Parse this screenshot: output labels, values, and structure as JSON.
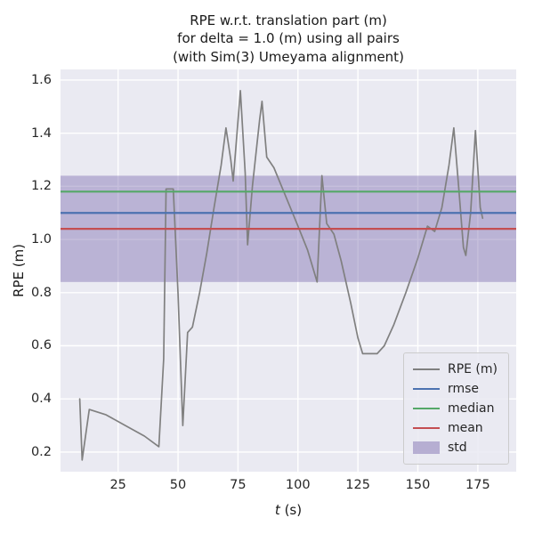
{
  "title": {
    "line1": "RPE w.r.t. translation part (m)",
    "line2": "for delta = 1.0 (m) using all pairs",
    "line3": "(with Sim(3) Umeyama alignment)"
  },
  "axes": {
    "xlabel_var": "t",
    "xlabel_unit": " (s)",
    "ylabel": "RPE (m)"
  },
  "legend": {
    "items": [
      {
        "label": "RPE (m)",
        "type": "line",
        "color": "#808080"
      },
      {
        "label": "rmse",
        "type": "line",
        "color": "#4c72b0"
      },
      {
        "label": "median",
        "type": "line",
        "color": "#55a868"
      },
      {
        "label": "mean",
        "type": "line",
        "color": "#c44e52"
      },
      {
        "label": "std",
        "type": "patch",
        "color": "#8172b2"
      }
    ]
  },
  "chart_data": {
    "type": "line",
    "title": "RPE w.r.t. translation part (m) for delta = 1.0 (m) using all pairs (with Sim(3) Umeyama alignment)",
    "xlabel": "t (s)",
    "ylabel": "RPE (m)",
    "xlim": [
      1,
      191
    ],
    "ylim": [
      0.126,
      1.64
    ],
    "xticks": [
      25,
      50,
      75,
      100,
      125,
      150,
      175
    ],
    "yticks": [
      0.2,
      0.4,
      0.6,
      0.8,
      1.0,
      1.2,
      1.4,
      1.6
    ],
    "grid": true,
    "legend_position": "lower right",
    "background": "#eaeaf2",
    "grid_color": "#ffffff",
    "series": [
      {
        "name": "RPE (m)",
        "color": "#808080",
        "x": [
          9,
          10,
          13,
          20,
          28,
          36,
          42,
          44,
          45,
          48,
          50,
          52,
          54,
          56,
          59,
          62,
          65,
          68,
          70,
          72,
          73,
          76,
          78,
          79,
          81,
          84,
          85,
          87,
          90,
          95,
          100,
          104,
          108,
          110,
          112,
          115,
          118,
          122,
          125,
          127,
          133,
          136,
          140,
          145,
          150,
          154,
          157,
          160,
          163,
          165,
          167,
          169,
          170,
          172,
          174,
          176,
          177
        ],
        "y": [
          0.4,
          0.17,
          0.36,
          0.34,
          0.3,
          0.26,
          0.22,
          0.55,
          1.19,
          1.19,
          0.8,
          0.3,
          0.65,
          0.67,
          0.8,
          0.95,
          1.12,
          1.28,
          1.42,
          1.3,
          1.22,
          1.56,
          1.25,
          0.98,
          1.2,
          1.45,
          1.52,
          1.31,
          1.27,
          1.16,
          1.05,
          0.96,
          0.84,
          1.24,
          1.06,
          1.02,
          0.92,
          0.76,
          0.63,
          0.57,
          0.57,
          0.6,
          0.68,
          0.8,
          0.93,
          1.05,
          1.03,
          1.12,
          1.28,
          1.42,
          1.2,
          0.97,
          0.94,
          1.1,
          1.41,
          1.12,
          1.08
        ]
      }
    ],
    "stat_lines": [
      {
        "name": "rmse",
        "value": 1.1,
        "color": "#4c72b0"
      },
      {
        "name": "median",
        "value": 1.18,
        "color": "#55a868"
      },
      {
        "name": "mean",
        "value": 1.04,
        "color": "#c44e52"
      }
    ],
    "std_band": {
      "name": "std",
      "low": 0.84,
      "high": 1.24,
      "color": "#8172b2",
      "alpha": 0.45
    }
  }
}
